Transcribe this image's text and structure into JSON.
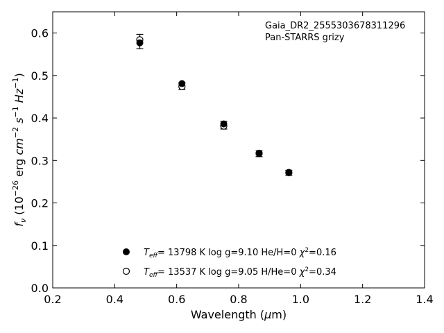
{
  "chart_data": {
    "type": "scatter",
    "annotation": [
      "Gaia_DR2_2555303678311296",
      "Pan-STARRS grizy"
    ],
    "xlabel": "Wavelength (μm)",
    "ylabel": "f_ν (10^-26 erg cm^-2 s^-1 Hz^-1)",
    "xlim": [
      0.2,
      1.4
    ],
    "ylim": [
      0.0,
      0.65
    ],
    "xticks": [
      0.2,
      0.4,
      0.6,
      0.8,
      1.0,
      1.2,
      1.4
    ],
    "yticks": [
      0.0,
      0.1,
      0.2,
      0.3,
      0.4,
      0.5,
      0.6
    ],
    "xtick_labels": [
      "0.2",
      "0.4",
      "0.6",
      "0.8",
      "1.0",
      "1.2",
      "1.4"
    ],
    "ytick_labels": [
      "0.0",
      "0.1",
      "0.2",
      "0.3",
      "0.4",
      "0.5",
      "0.6"
    ],
    "grid": false,
    "legend_position": "bottom-center",
    "observed": {
      "x": [
        0.481,
        0.617,
        0.752,
        0.866,
        0.962
      ],
      "y": [
        0.58,
        0.475,
        0.383,
        0.316,
        0.271
      ],
      "yerr": [
        0.017,
        0.008,
        0.009,
        0.007,
        0.006
      ]
    },
    "series": [
      {
        "name": "T_eff= 13798 K  log g=9.10  He/H=0  χ²=0.16",
        "marker": "filled",
        "x": [
          0.481,
          0.617,
          0.752,
          0.866,
          0.962
        ],
        "y": [
          0.577,
          0.481,
          0.386,
          0.316,
          0.272
        ]
      },
      {
        "name": "T_eff= 13537 K  log g=9.05  H/He=0  χ²=0.34",
        "marker": "open",
        "x": [
          0.481,
          0.617,
          0.752,
          0.866,
          0.962
        ],
        "y": [
          0.584,
          0.474,
          0.381,
          0.317,
          0.271
        ]
      }
    ],
    "legend": [
      {
        "teff_value": "= 13798 K",
        "logg": "log g=9.10",
        "comp": "He/H=0",
        "chi_value": "=0.16"
      },
      {
        "teff_value": "= 13537 K",
        "logg": "log g=9.05",
        "comp": "H/He=0",
        "chi_value": "=0.34"
      }
    ],
    "colors": {
      "marker": "#000000",
      "background": "#ffffff"
    }
  }
}
